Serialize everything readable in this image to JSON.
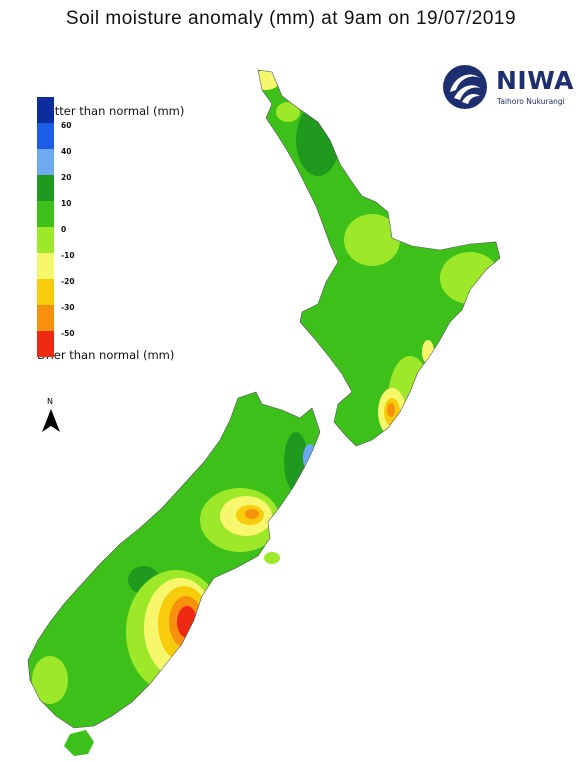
{
  "title": "Soil moisture anomaly (mm) at 9am on 19/07/2019",
  "logo": {
    "name": "NIWA",
    "tagline": "Taihoro Nukurangi",
    "brand_color": "#1d2f6f"
  },
  "legend": {
    "top_label": "Wetter than normal (mm)",
    "bottom_label": "Drier than normal (mm)",
    "swatches": [
      {
        "color": "#0c2d9c"
      },
      {
        "color": "#1a5ee8"
      },
      {
        "color": "#6eaaf0"
      },
      {
        "color": "#1f9a1f"
      },
      {
        "color": "#3ec01a"
      },
      {
        "color": "#9ee82a"
      },
      {
        "color": "#f7f76e"
      },
      {
        "color": "#f7cc0c"
      },
      {
        "color": "#f7900c"
      },
      {
        "color": "#f02a12"
      }
    ],
    "ticks": [
      "60",
      "40",
      "20",
      "10",
      "0",
      "-10",
      "-20",
      "-30",
      "-50"
    ]
  },
  "north_arrow": {
    "label": "N"
  },
  "palette": {
    "wet_deep": "#0c2d9c",
    "wet_mid": "#1a5ee8",
    "wet_light": "#6eaaf0",
    "green_dark": "#1f9a1f",
    "green": "#3ec01a",
    "green_light": "#9ee82a",
    "yellow": "#f7f76e",
    "gold": "#f7cc0c",
    "orange": "#f7900c",
    "red": "#f02a12"
  }
}
